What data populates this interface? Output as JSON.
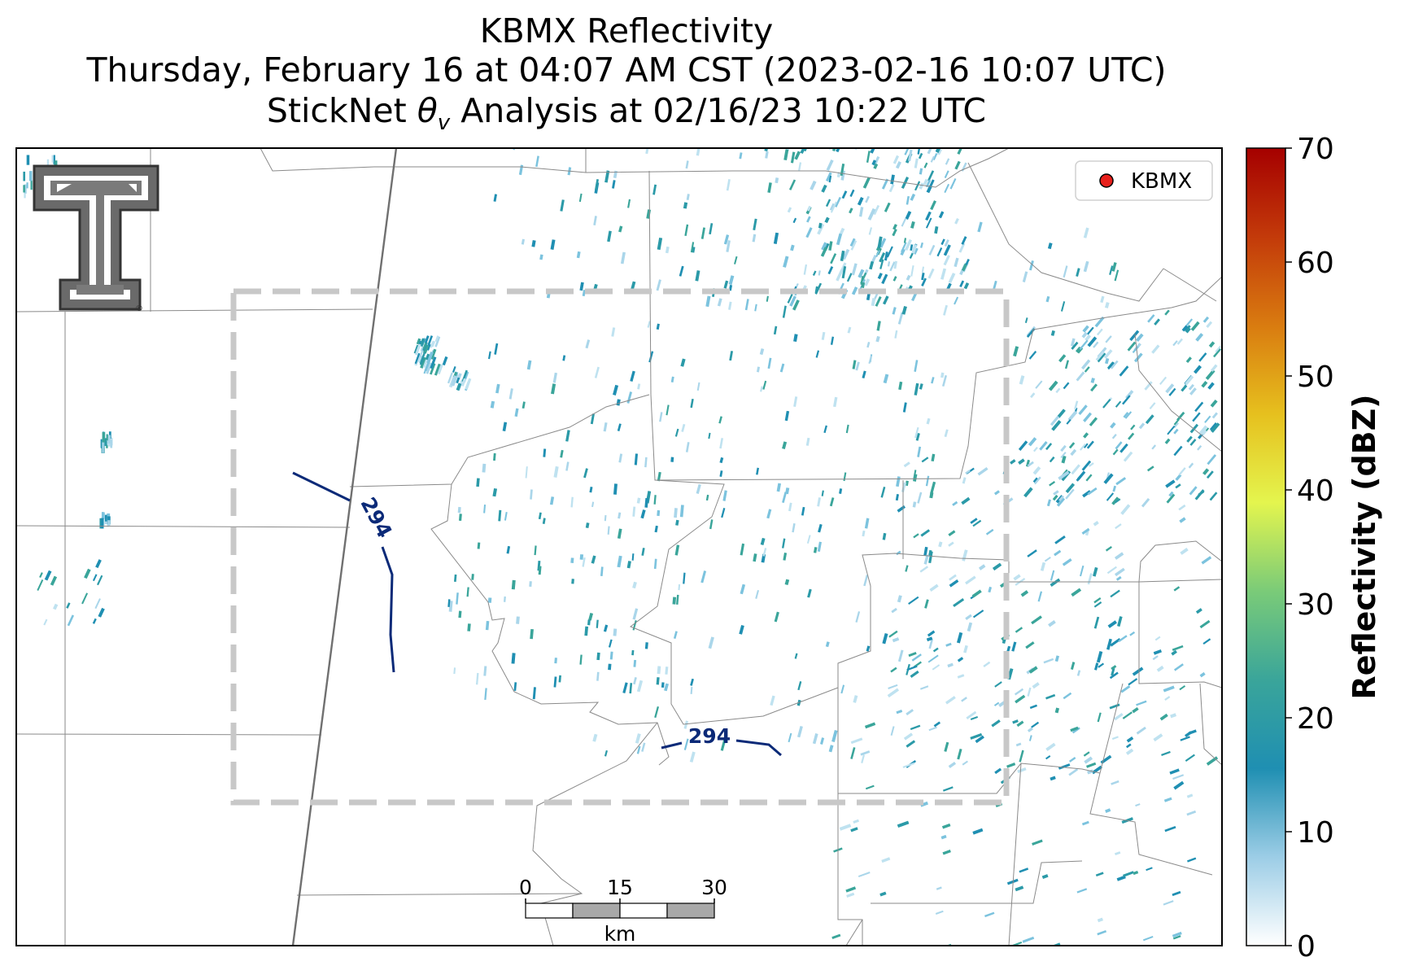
{
  "title": {
    "line1": "KBMX Reflectivity",
    "line2": "Thursday, February 16 at 04:07 AM CST (2023-02-16 10:07 UTC)",
    "line3_prefix": "StickNet ",
    "line3_symbol": "θ",
    "line3_sub": "v",
    "line3_suffix": " Analysis at 02/16/23 10:22 UTC"
  },
  "legend": {
    "label": "KBMX",
    "marker_color": "#e8201c"
  },
  "logo": {
    "name": "Texas Tech double-T logo",
    "mark": "®"
  },
  "contours": [
    {
      "label": "294",
      "value": 294
    },
    {
      "label": "294",
      "value": 294
    }
  ],
  "scale_bar": {
    "unit": "km",
    "ticks": [
      "0",
      "15",
      "30"
    ]
  },
  "colorbar": {
    "label": "Reflectivity (dBZ)",
    "min": 0,
    "max": 70,
    "ticks": [
      "0",
      "10",
      "20",
      "30",
      "40",
      "50",
      "60",
      "70"
    ],
    "colors": [
      "#ffffff",
      "#9ccde6",
      "#1f8fb2",
      "#3aa59a",
      "#7acb78",
      "#e4f54e",
      "#e6c01e",
      "#d97b10",
      "#c33a0a",
      "#a50000"
    ]
  },
  "colors": {
    "contour": "#0b2a78",
    "boundary": "#8a8a8a",
    "dashed_box": "#c8c8c8"
  }
}
